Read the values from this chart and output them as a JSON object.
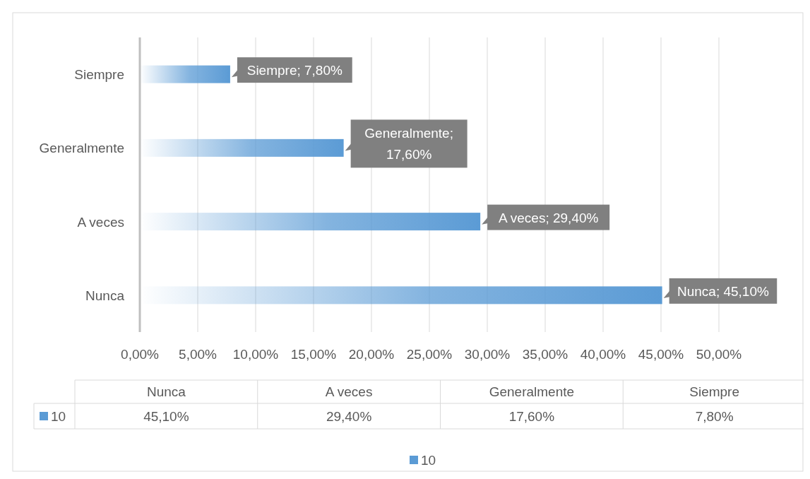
{
  "chart_data": {
    "type": "bar",
    "orientation": "horizontal",
    "categories": [
      "Siempre",
      "Generalmente",
      "A veces",
      "Nunca"
    ],
    "series": [
      {
        "name": "10",
        "color": "#5b9bd5",
        "values": [
          7.8,
          17.6,
          29.4,
          45.1
        ],
        "value_labels": [
          "Siempre; 7,80%",
          "Generalmente; 17,60%",
          "A veces; 29,40%",
          "Nunca; 45,10%"
        ]
      }
    ],
    "annotations": [
      "45,10%",
      "29,40%",
      "17,60%",
      "7,80%"
    ],
    "xlim": [
      0,
      50
    ],
    "xticks": [
      {
        "value": 0,
        "label": "0,00%"
      },
      {
        "value": 5,
        "label": "5,00%"
      },
      {
        "value": 10,
        "label": "10,00%"
      },
      {
        "value": 15,
        "label": "15,00%"
      },
      {
        "value": 20,
        "label": "20,00%"
      },
      {
        "value": 25,
        "label": "25,00%"
      },
      {
        "value": 30,
        "label": "30,00%"
      },
      {
        "value": 35,
        "label": "35,00%"
      },
      {
        "value": 40,
        "label": "40,00%"
      },
      {
        "value": 45,
        "label": "45,00%"
      },
      {
        "value": 50,
        "label": "50,00%"
      }
    ],
    "grid": "x",
    "legend": "bottom"
  }
}
